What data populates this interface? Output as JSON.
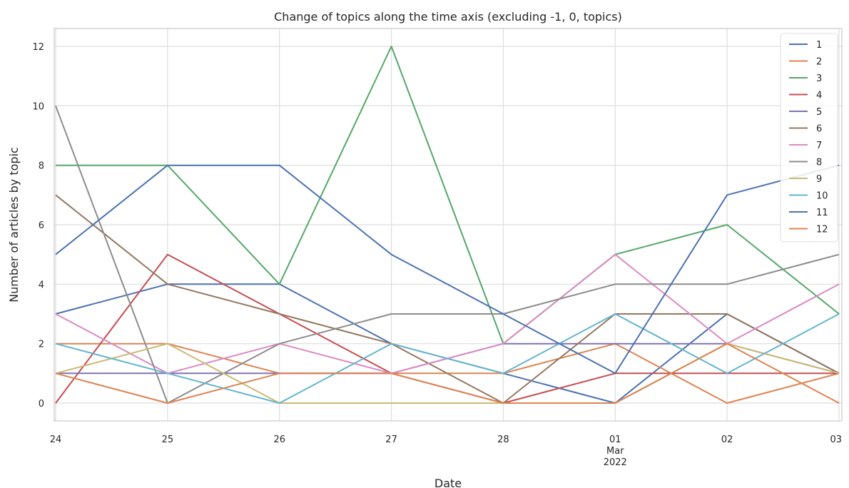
{
  "chart_data": {
    "type": "line",
    "title": "Change of topics along the time axis (excluding -1, 0, topics)",
    "xlabel": "Date",
    "ylabel": "Number of articles by topic",
    "ylim": [
      -0.6,
      12.6
    ],
    "grid": true,
    "legend": "top-right",
    "x": [
      "2022-02-24",
      "2022-02-25",
      "2022-02-26",
      "2022-02-27",
      "2022-02-28",
      "2022-03-01",
      "2022-03-02",
      "2022-03-03"
    ],
    "x_tick_labels": [
      [
        "24"
      ],
      [
        "25"
      ],
      [
        "26"
      ],
      [
        "27"
      ],
      [
        "28"
      ],
      [
        "01",
        "Mar",
        "2022"
      ],
      [
        "02"
      ],
      [
        "03"
      ]
    ],
    "y_ticks": [
      0,
      2,
      4,
      6,
      8,
      10,
      12
    ],
    "y_tick_labels": [
      "0",
      "2",
      "4",
      "6",
      "8",
      "10",
      "12"
    ],
    "series": [
      {
        "name": "1",
        "color": "#4c72b0",
        "values": [
          3,
          4,
          4,
          2,
          1,
          0,
          3,
          1
        ]
      },
      {
        "name": "2",
        "color": "#dd8452",
        "values": [
          2,
          2,
          1,
          1,
          1,
          2,
          0,
          1
        ]
      },
      {
        "name": "3",
        "color": "#55a868",
        "values": [
          8,
          8,
          4,
          12,
          2,
          5,
          6,
          3
        ]
      },
      {
        "name": "4",
        "color": "#c44e52",
        "values": [
          0,
          5,
          3,
          1,
          0,
          1,
          1,
          1
        ]
      },
      {
        "name": "5",
        "color": "#8172b3",
        "values": [
          1,
          1,
          1,
          1,
          2,
          2,
          2,
          1
        ]
      },
      {
        "name": "6",
        "color": "#937860",
        "values": [
          7,
          4,
          3,
          2,
          0,
          3,
          3,
          1
        ]
      },
      {
        "name": "7",
        "color": "#da8bc3",
        "values": [
          3,
          1,
          2,
          1,
          2,
          5,
          2,
          4
        ]
      },
      {
        "name": "8",
        "color": "#8c8c8c",
        "values": [
          10,
          0,
          2,
          3,
          3,
          4,
          4,
          5
        ]
      },
      {
        "name": "9",
        "color": "#ccb974",
        "values": [
          1,
          2,
          0,
          0,
          0,
          0,
          2,
          1
        ]
      },
      {
        "name": "10",
        "color": "#64b5cd",
        "values": [
          2,
          1,
          0,
          2,
          1,
          3,
          1,
          3
        ]
      },
      {
        "name": "11",
        "color": "#4c72b0",
        "values": [
          5,
          8,
          8,
          5,
          3,
          1,
          7,
          8
        ]
      },
      {
        "name": "12",
        "color": "#dd8452",
        "values": [
          1,
          0,
          1,
          1,
          0,
          0,
          2,
          0
        ]
      }
    ]
  }
}
